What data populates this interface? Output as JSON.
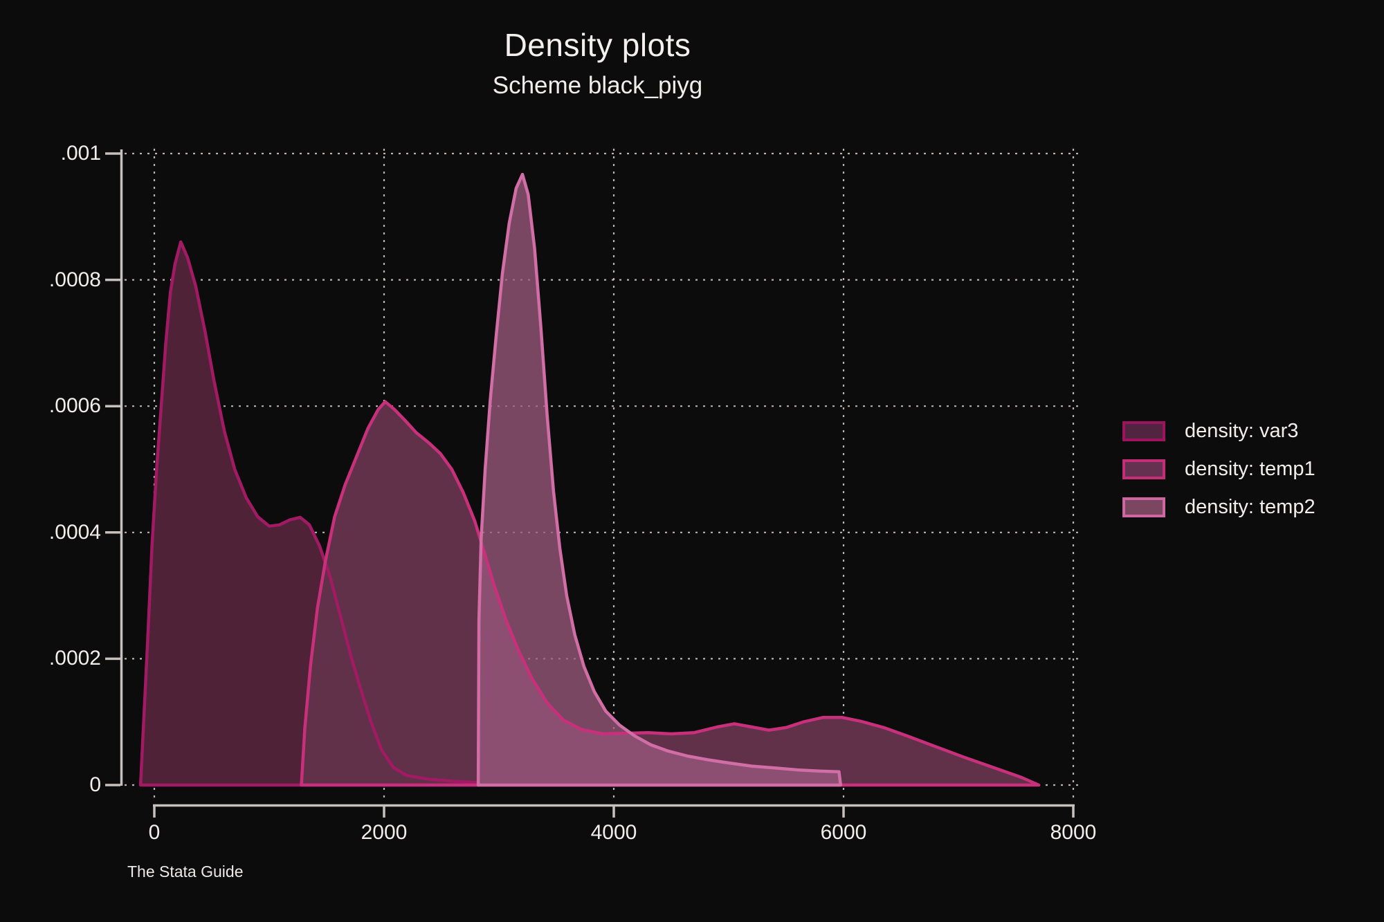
{
  "header": {
    "title": "Density plots",
    "subtitle": "Scheme black_piyg"
  },
  "footer": {
    "text": "The Stata Guide"
  },
  "colors": {
    "background": "#0c0c0c",
    "text": "#f1eeed",
    "axis": "#c6c1bf",
    "grid": "#d8d2cf"
  },
  "legend": {
    "position": "right",
    "items": [
      {
        "label": "density: var3",
        "swatch_fill": "#512440",
        "swatch_border": "#9e135e"
      },
      {
        "label": "density: temp1",
        "swatch_fill": "#643150",
        "swatch_border": "#c52d76"
      },
      {
        "label": "density: temp2",
        "swatch_fill": "#7a4660",
        "swatch_border": "#ce679f"
      }
    ]
  },
  "chart_data": {
    "type": "area",
    "title": "Density plots",
    "subtitle": "Scheme black_piyg",
    "xlabel": "",
    "ylabel": "",
    "x_range": [
      0,
      8000
    ],
    "y_range": [
      0,
      0.001
    ],
    "x_ticks": [
      {
        "value": 0,
        "label": "0"
      },
      {
        "value": 2000,
        "label": "2000"
      },
      {
        "value": 4000,
        "label": "4000"
      },
      {
        "value": 6000,
        "label": "6000"
      },
      {
        "value": 8000,
        "label": "8000"
      }
    ],
    "y_ticks": [
      {
        "value": 0,
        "label": "0"
      },
      {
        "value": 0.0002,
        "label": ".0002"
      },
      {
        "value": 0.0004,
        "label": ".0004"
      },
      {
        "value": 0.0006,
        "label": ".0006"
      },
      {
        "value": 0.0008,
        "label": ".0008"
      },
      {
        "value": 0.001,
        "label": ".001"
      }
    ],
    "grid": "dotted",
    "legend_position": "right",
    "series": [
      {
        "name": "density: var3",
        "stroke": "#a21a64",
        "fill": "#4f2237",
        "fill_opacity": 1,
        "points": [
          [
            -120,
            0
          ],
          [
            -60,
            0.00022
          ],
          [
            -20,
            0.00038
          ],
          [
            20,
            0.0005
          ],
          [
            60,
            0.0006
          ],
          [
            100,
            0.0007
          ],
          [
            140,
            0.00078
          ],
          [
            180,
            0.000825
          ],
          [
            230,
            0.00086
          ],
          [
            290,
            0.000835
          ],
          [
            360,
            0.00079
          ],
          [
            440,
            0.00072
          ],
          [
            520,
            0.00064
          ],
          [
            610,
            0.00056
          ],
          [
            700,
            0.0005
          ],
          [
            800,
            0.000455
          ],
          [
            900,
            0.000425
          ],
          [
            1000,
            0.00041
          ],
          [
            1090,
            0.000412
          ],
          [
            1180,
            0.00042
          ],
          [
            1270,
            0.000424
          ],
          [
            1350,
            0.000412
          ],
          [
            1440,
            0.000378
          ],
          [
            1530,
            0.00033
          ],
          [
            1620,
            0.000268
          ],
          [
            1710,
            0.000205
          ],
          [
            1800,
            0.00015
          ],
          [
            1890,
            9.8e-05
          ],
          [
            1980,
            5.5e-05
          ],
          [
            2080,
            2.8e-05
          ],
          [
            2200,
            1.5e-05
          ],
          [
            2400,
            9e-06
          ],
          [
            2600,
            6e-06
          ],
          [
            2800,
            4e-06
          ],
          [
            2820,
            0
          ]
        ]
      },
      {
        "name": "density: temp1",
        "stroke": "#c9307c",
        "fill": "#613049",
        "fill_opacity": 1,
        "points": [
          [
            1280,
            0
          ],
          [
            1310,
            9e-05
          ],
          [
            1360,
            0.00019
          ],
          [
            1420,
            0.00028
          ],
          [
            1490,
            0.000355
          ],
          [
            1570,
            0.000425
          ],
          [
            1660,
            0.000475
          ],
          [
            1760,
            0.00052
          ],
          [
            1860,
            0.000565
          ],
          [
            1950,
            0.000595
          ],
          [
            2010,
            0.000607
          ],
          [
            2090,
            0.000595
          ],
          [
            2180,
            0.000578
          ],
          [
            2280,
            0.000558
          ],
          [
            2390,
            0.000542
          ],
          [
            2490,
            0.000525
          ],
          [
            2590,
            0.0005
          ],
          [
            2690,
            0.000463
          ],
          [
            2790,
            0.000418
          ],
          [
            2870,
            0.00037
          ],
          [
            2960,
            0.000315
          ],
          [
            3060,
            0.000262
          ],
          [
            3170,
            0.000213
          ],
          [
            3290,
            0.000168
          ],
          [
            3420,
            0.00013
          ],
          [
            3560,
            0.000103
          ],
          [
            3720,
            8.8e-05
          ],
          [
            3900,
            8.1e-05
          ],
          [
            4100,
            8.2e-05
          ],
          [
            4300,
            8.3e-05
          ],
          [
            4500,
            8.1e-05
          ],
          [
            4700,
            8.3e-05
          ],
          [
            4900,
            9.2e-05
          ],
          [
            5050,
            9.7e-05
          ],
          [
            5200,
            9.2e-05
          ],
          [
            5350,
            8.7e-05
          ],
          [
            5500,
            9.1e-05
          ],
          [
            5650,
            0.0001
          ],
          [
            5820,
            0.000107
          ],
          [
            5990,
            0.000107
          ],
          [
            6150,
            0.000101
          ],
          [
            6350,
            9.1e-05
          ],
          [
            6550,
            7.8e-05
          ],
          [
            6800,
            6.1e-05
          ],
          [
            7050,
            4.4e-05
          ],
          [
            7300,
            2.8e-05
          ],
          [
            7550,
            1.2e-05
          ],
          [
            7700,
            0
          ]
        ]
      },
      {
        "name": "density: temp2",
        "stroke": "#d26ea6",
        "fill": "#9a587c",
        "fill_opacity": 0.78,
        "points": [
          [
            2820,
            0
          ],
          [
            2826,
            0.00026
          ],
          [
            2845,
            0.00039
          ],
          [
            2880,
            0.0005
          ],
          [
            2925,
            0.00061
          ],
          [
            2975,
            0.00071
          ],
          [
            3030,
            0.00081
          ],
          [
            3090,
            0.00089
          ],
          [
            3150,
            0.000945
          ],
          [
            3205,
            0.000967
          ],
          [
            3255,
            0.000935
          ],
          [
            3310,
            0.00085
          ],
          [
            3365,
            0.000725
          ],
          [
            3420,
            0.000585
          ],
          [
            3475,
            0.000465
          ],
          [
            3530,
            0.000375
          ],
          [
            3590,
            0.0003
          ],
          [
            3660,
            0.000238
          ],
          [
            3740,
            0.000188
          ],
          [
            3830,
            0.000148
          ],
          [
            3930,
            0.000117
          ],
          [
            4050,
            9.5e-05
          ],
          [
            4180,
            7.8e-05
          ],
          [
            4320,
            6.4e-05
          ],
          [
            4470,
            5.4e-05
          ],
          [
            4640,
            4.6e-05
          ],
          [
            4820,
            4e-05
          ],
          [
            5000,
            3.5e-05
          ],
          [
            5200,
            3e-05
          ],
          [
            5400,
            2.7e-05
          ],
          [
            5600,
            2.4e-05
          ],
          [
            5800,
            2.2e-05
          ],
          [
            5960,
            2.1e-05
          ],
          [
            5975,
            0
          ]
        ]
      }
    ]
  }
}
